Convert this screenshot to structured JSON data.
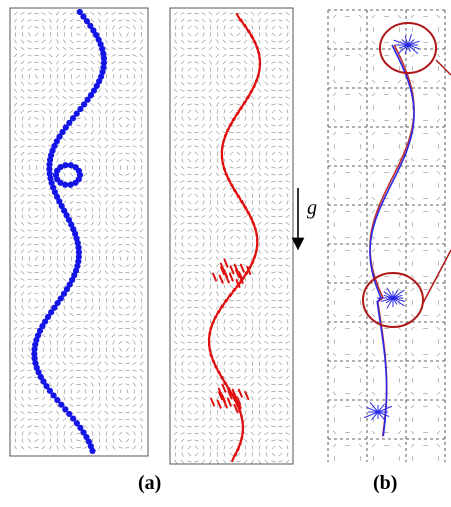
{
  "captions": {
    "a": "(a)",
    "b": "(b)"
  },
  "gravity": {
    "symbol": "g"
  },
  "colors": {
    "trajectory_dots": "#1414e6",
    "trajectory_dashes": "#e01010",
    "trajectory_b_blue": "#2a2ae8",
    "trajectory_b_red": "#c03030",
    "highlight_circle": "#b01818",
    "vector_field": "#8a8a8a",
    "cell_border": "#333333"
  },
  "panels": [
    {
      "id": "panel-a-left",
      "content": "vector-field-with-dotted-trajectory"
    },
    {
      "id": "panel-a-right",
      "content": "vector-field-with-dashed-trajectory"
    },
    {
      "id": "panel-b",
      "content": "cellular-vector-field-with-two-trajectories-and-highlight-circles"
    }
  ]
}
